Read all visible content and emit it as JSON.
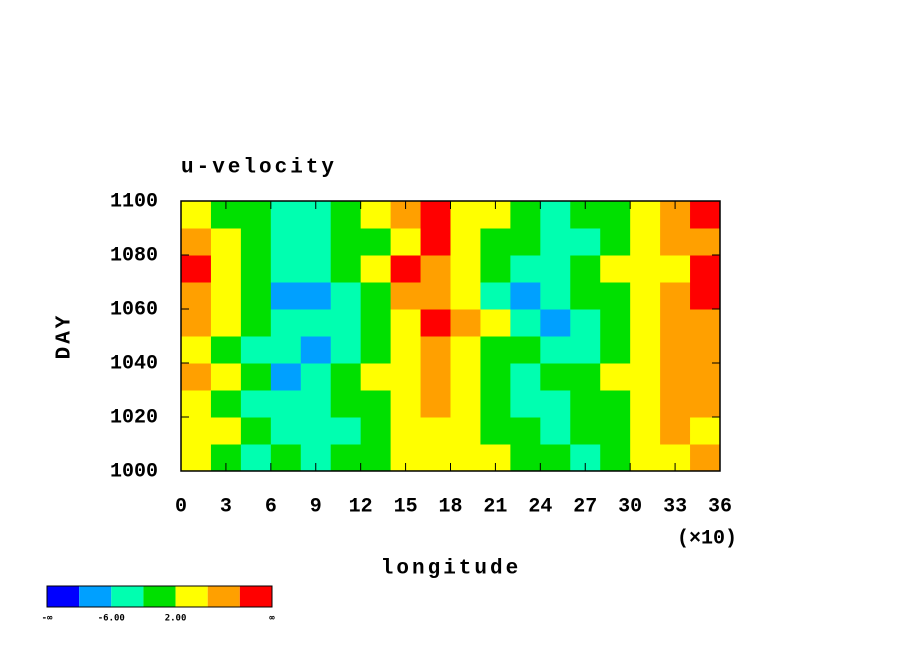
{
  "chart_data": {
    "type": "heatmap",
    "title": "u-velocity",
    "x_label": "longitude",
    "y_label": "DAY",
    "x_multiplier": "(×10)",
    "xlim": [
      0,
      360
    ],
    "ylim": [
      1000,
      1100
    ],
    "xticks": [
      0,
      {
        "value": 30,
        "label": "3"
      },
      {
        "value": 60,
        "label": "6"
      },
      {
        "value": 90,
        "label": "9"
      },
      {
        "value": 120,
        "label": "12"
      },
      {
        "value": 150,
        "label": "15"
      },
      {
        "value": 180,
        "label": "18"
      },
      {
        "value": 210,
        "label": "21"
      },
      {
        "value": 240,
        "label": "24"
      },
      {
        "value": 270,
        "label": "27"
      },
      {
        "value": 300,
        "label": "30"
      },
      {
        "value": 330,
        "label": "33"
      },
      {
        "value": 360,
        "label": "36"
      }
    ],
    "yticks": [
      1000,
      1020,
      1040,
      1060,
      1080,
      1100
    ],
    "x": [
      10,
      30,
      50,
      70,
      90,
      110,
      130,
      150,
      170,
      190,
      210,
      230,
      250,
      270,
      290,
      310,
      330,
      350
    ],
    "y": [
      1005,
      1015,
      1025,
      1035,
      1045,
      1055,
      1065,
      1075,
      1085,
      1095
    ],
    "z": [
      [
        3,
        1,
        -3,
        -1,
        -5,
        -2,
        1,
        3,
        4,
        5,
        3,
        0,
        -1,
        -3,
        -2,
        3,
        5,
        7
      ],
      [
        5,
        2,
        -2,
        -6,
        -4,
        -3,
        0,
        3,
        5,
        3,
        1,
        -2,
        -3,
        -1,
        0,
        4,
        7,
        5
      ],
      [
        2,
        -1,
        -4,
        -3,
        -5,
        -2,
        1,
        4,
        6,
        4,
        0,
        -3,
        -4,
        -2,
        1,
        3,
        8,
        6
      ],
      [
        7,
        3,
        -2,
        -7,
        -4,
        -1,
        2,
        5,
        7,
        3,
        -1,
        -4,
        -2,
        -1,
        2,
        5,
        6,
        8
      ],
      [
        3,
        1,
        -3,
        -6,
        -7,
        -3,
        0,
        4,
        8,
        5,
        1,
        -2,
        -5,
        -3,
        1,
        4,
        7,
        9
      ],
      [
        6,
        2,
        -1,
        -3,
        -5,
        -4,
        1,
        5,
        11,
        6,
        2,
        -3,
        -7,
        -4,
        0,
        3,
        6,
        7
      ],
      [
        8,
        3,
        -2,
        -7,
        -8,
        -6,
        -2,
        7,
        9,
        4,
        -3,
        -8,
        -4,
        -2,
        1,
        2,
        7,
        11
      ],
      [
        11,
        4,
        1,
        -3,
        -4,
        -2,
        3,
        11,
        8,
        2,
        -1,
        -3,
        -4,
        -1,
        2,
        3,
        5,
        12
      ],
      [
        6,
        3,
        -1,
        -4,
        -6,
        -2,
        1,
        5,
        10,
        4,
        0,
        -2,
        -6,
        -3,
        1,
        2,
        6,
        9
      ],
      [
        4,
        1,
        -2,
        -5,
        -3,
        -1,
        2,
        8,
        12,
        5,
        2,
        -2,
        -3,
        -1,
        0,
        3,
        7,
        10
      ]
    ],
    "colorbar_colors": [
      "#0000ff",
      "#00a0ff",
      "#00ffb0",
      "#00e000",
      "#ffff00",
      "#ffa000",
      "#ff0000"
    ],
    "colorbar_labels": [
      {
        "label": "-∞"
      },
      {
        "value": -6,
        "label": "-6.00"
      },
      {
        "value": 2,
        "label": "2.00"
      },
      {
        "label": "∞"
      }
    ]
  }
}
